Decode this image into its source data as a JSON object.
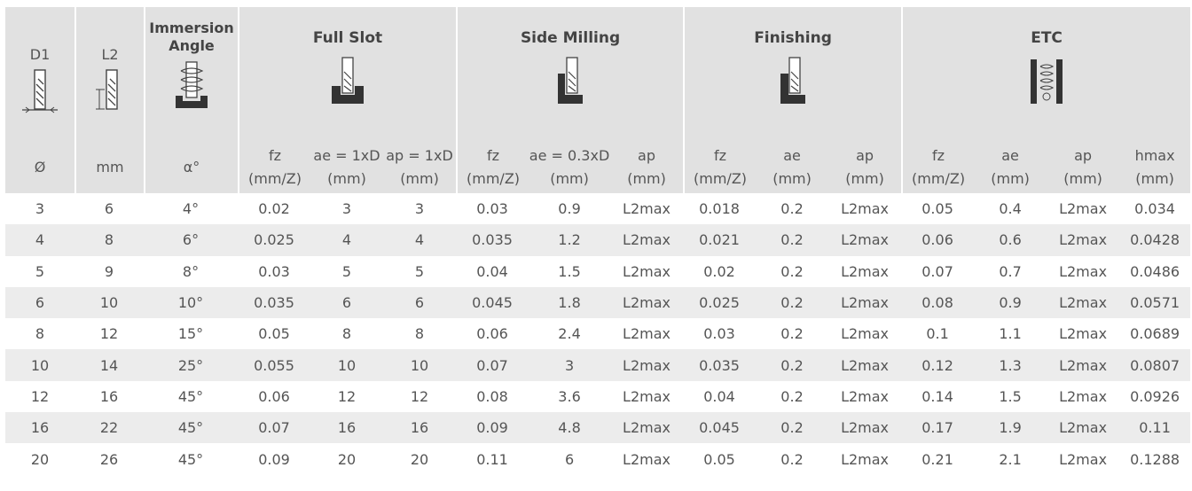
{
  "header": {
    "d1": "D1",
    "l2": "L2",
    "immersion_angle": "Immersion Angle",
    "full_slot": "Full Slot",
    "side_milling": "Side Milling",
    "finishing": "Finishing",
    "etc": "ETC",
    "units": {
      "d1": "Ø",
      "l2": "mm",
      "angle": "α°",
      "fs_fz": [
        "fz",
        "(mm/Z)"
      ],
      "fs_ae": [
        "ae = 1xD",
        "(mm)"
      ],
      "fs_ap": [
        "ap = 1xD",
        "(mm)"
      ],
      "sm_fz": [
        "fz",
        "(mm/Z)"
      ],
      "sm_ae": [
        "ae = 0.3xD",
        "(mm)"
      ],
      "sm_ap": [
        "ap",
        "(mm)"
      ],
      "fi_fz": [
        "fz",
        "(mm/Z)"
      ],
      "fi_ae": [
        "ae",
        "(mm)"
      ],
      "fi_ap": [
        "ap",
        "(mm)"
      ],
      "etc_fz": [
        "fz",
        "(mm/Z)"
      ],
      "etc_ae": [
        "ae",
        "(mm)"
      ],
      "etc_ap": [
        "ap",
        "(mm)"
      ],
      "etc_hmax": [
        "hmax",
        "(mm)"
      ]
    }
  },
  "rows": [
    [
      "3",
      "6",
      "4°",
      "0.02",
      "3",
      "3",
      "0.03",
      "0.9",
      "L2max",
      "0.018",
      "0.2",
      "L2max",
      "0.05",
      "0.4",
      "L2max",
      "0.034"
    ],
    [
      "4",
      "8",
      "6°",
      "0.025",
      "4",
      "4",
      "0.035",
      "1.2",
      "L2max",
      "0.021",
      "0.2",
      "L2max",
      "0.06",
      "0.6",
      "L2max",
      "0.0428"
    ],
    [
      "5",
      "9",
      "8°",
      "0.03",
      "5",
      "5",
      "0.04",
      "1.5",
      "L2max",
      "0.02",
      "0.2",
      "L2max",
      "0.07",
      "0.7",
      "L2max",
      "0.0486"
    ],
    [
      "6",
      "10",
      "10°",
      "0.035",
      "6",
      "6",
      "0.045",
      "1.8",
      "L2max",
      "0.025",
      "0.2",
      "L2max",
      "0.08",
      "0.9",
      "L2max",
      "0.0571"
    ],
    [
      "8",
      "12",
      "15°",
      "0.05",
      "8",
      "8",
      "0.06",
      "2.4",
      "L2max",
      "0.03",
      "0.2",
      "L2max",
      "0.1",
      "1.1",
      "L2max",
      "0.0689"
    ],
    [
      "10",
      "14",
      "25°",
      "0.055",
      "10",
      "10",
      "0.07",
      "3",
      "L2max",
      "0.035",
      "0.2",
      "L2max",
      "0.12",
      "1.3",
      "L2max",
      "0.0807"
    ],
    [
      "12",
      "16",
      "45°",
      "0.06",
      "12",
      "12",
      "0.08",
      "3.6",
      "L2max",
      "0.04",
      "0.2",
      "L2max",
      "0.14",
      "1.5",
      "L2max",
      "0.0926"
    ],
    [
      "16",
      "22",
      "45°",
      "0.07",
      "16",
      "16",
      "0.09",
      "4.8",
      "L2max",
      "0.045",
      "0.2",
      "L2max",
      "0.17",
      "1.9",
      "L2max",
      "0.11"
    ],
    [
      "20",
      "26",
      "45°",
      "0.09",
      "20",
      "20",
      "0.11",
      "6",
      "L2max",
      "0.05",
      "0.2",
      "L2max",
      "0.21",
      "2.1",
      "L2max",
      "0.1288"
    ]
  ]
}
